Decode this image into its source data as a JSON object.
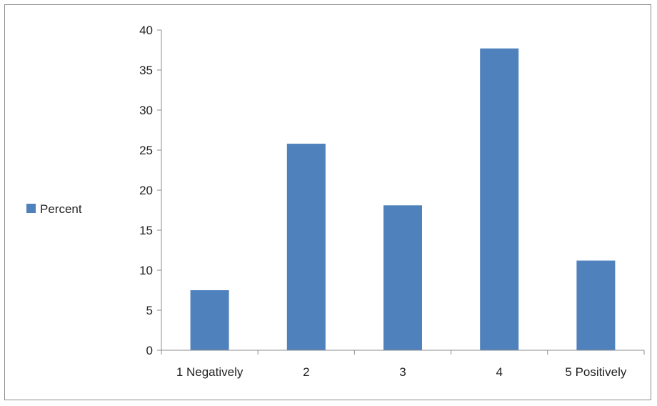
{
  "chart_data": {
    "type": "bar",
    "categories": [
      "1 Negatively",
      "2",
      "3",
      "4",
      "5 Positively"
    ],
    "series": [
      {
        "name": "Percent",
        "values": [
          7.5,
          25.8,
          18.1,
          37.7,
          11.2
        ]
      }
    ],
    "ylim": [
      0,
      40
    ],
    "yticks": [
      0,
      5,
      10,
      15,
      20,
      25,
      30,
      35,
      40
    ],
    "grid": false,
    "legend": "left",
    "bar_color": "#4f81bd"
  }
}
